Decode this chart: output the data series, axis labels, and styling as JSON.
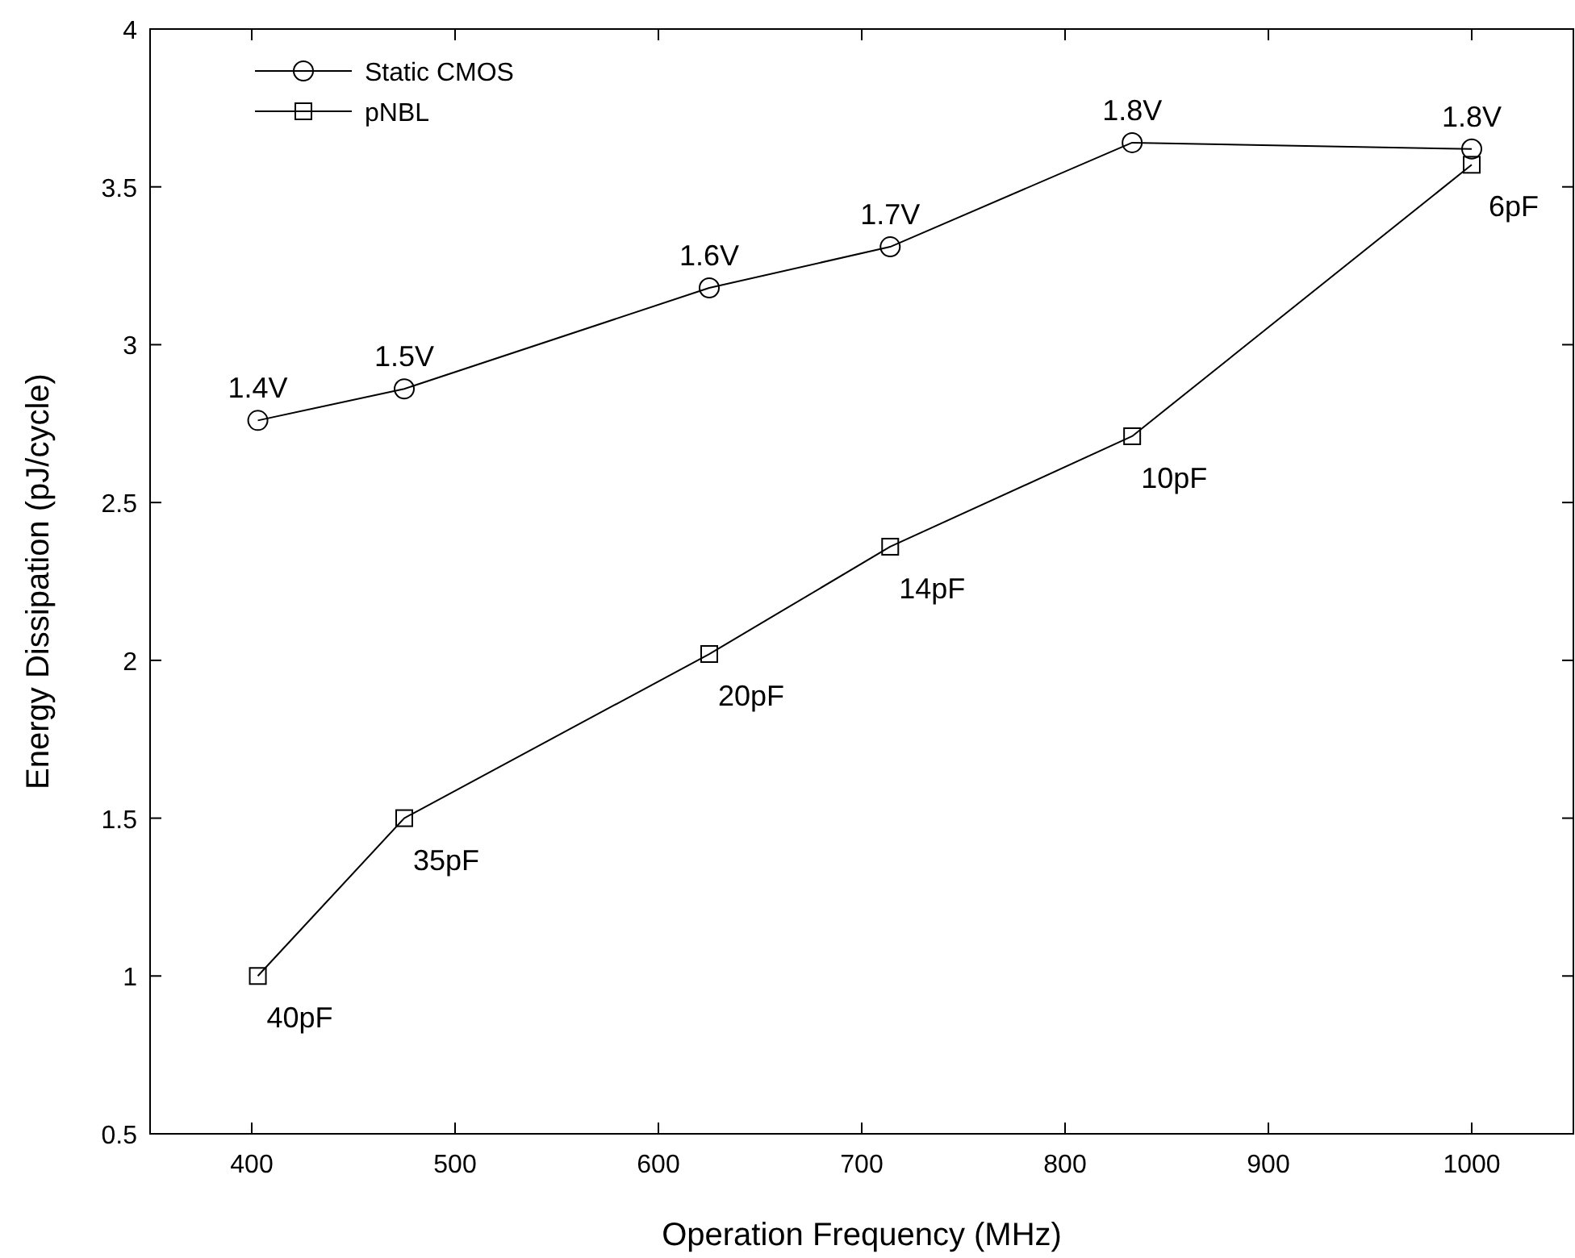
{
  "chart_data": {
    "type": "line",
    "xlabel": "Operation Frequency (MHz)",
    "ylabel": "Energy Dissipation (pJ/cycle)",
    "x": [
      403,
      475,
      625,
      714,
      833,
      1000
    ],
    "series": [
      {
        "name": "Static CMOS",
        "color": "#000000",
        "marker": "circle",
        "values": [
          2.76,
          2.86,
          3.18,
          3.31,
          3.64,
          3.62
        ]
      },
      {
        "name": "pNBL",
        "color": "#000000",
        "marker": "square",
        "values": [
          1.0,
          1.5,
          2.02,
          2.36,
          2.71,
          3.57
        ]
      }
    ],
    "xlim": [
      350,
      1050
    ],
    "xticks": [
      400,
      500,
      600,
      700,
      800,
      900,
      1000
    ],
    "ylim": [
      0.5,
      4
    ],
    "yticks": [
      0.5,
      1,
      1.5,
      2,
      2.5,
      3,
      3.5,
      4
    ],
    "grid": false,
    "legend": "top left",
    "line_style": "solid",
    "annotations": [
      {
        "text": "1.4V",
        "x": 403,
        "y": 2.76
      },
      {
        "text": "1.5V",
        "x": 475,
        "y": 2.86
      },
      {
        "text": "1.6V",
        "x": 625,
        "y": 3.18
      },
      {
        "text": "1.7V",
        "x": 714,
        "y": 3.31
      },
      {
        "text": "1.8V",
        "x": 833,
        "y": 3.64
      },
      {
        "text": "1.8V",
        "x": 1000,
        "y": 3.62
      },
      {
        "text": "40pF",
        "x": 403,
        "y": 1.0
      },
      {
        "text": "35pF",
        "x": 475,
        "y": 1.5
      },
      {
        "text": "20pF",
        "x": 625,
        "y": 2.02
      },
      {
        "text": "14pF",
        "x": 714,
        "y": 2.36
      },
      {
        "text": "10pF",
        "x": 833,
        "y": 2.71
      },
      {
        "text": "6pF",
        "x": 1000,
        "y": 3.57
      }
    ]
  }
}
